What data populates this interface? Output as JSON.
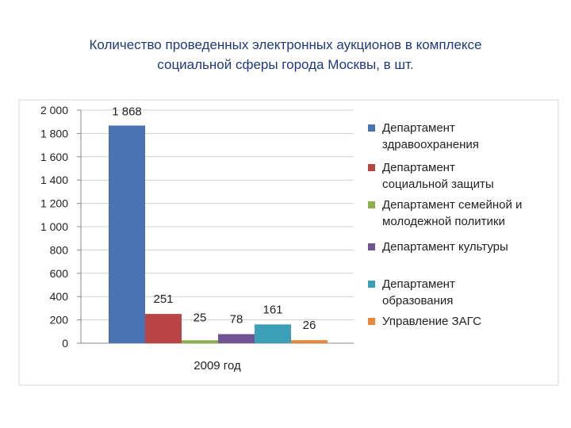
{
  "title_lines": [
    "Количество проведенных электронных аукционов в комплексе",
    "социальной сферы города Москвы, в шт."
  ],
  "chart_data": {
    "type": "bar",
    "xlabel": "2009 год",
    "ylim": [
      0,
      2000
    ],
    "yticks": [
      0,
      200,
      400,
      600,
      800,
      1000,
      1200,
      1400,
      1600,
      1800,
      2000
    ],
    "ytick_labels": [
      "0",
      "200",
      "400",
      "600",
      "800",
      "1 000",
      "1 200",
      "1 400",
      "1 600",
      "1 800",
      "2 000"
    ],
    "grid": true,
    "legend_position": "right",
    "series": [
      {
        "name": [
          "Департамент",
          "здравоохранения"
        ],
        "value": 1868,
        "label": "1 868",
        "color": "#4a73b3"
      },
      {
        "name": [
          "Департамент",
          "социальной защиты"
        ],
        "value": 251,
        "label": "251",
        "color": "#b84444"
      },
      {
        "name": [
          "Департамент семейной и",
          "молодежной политики"
        ],
        "value": 25,
        "label": "25",
        "color": "#8bb04a"
      },
      {
        "name": [
          "Департамент культуры"
        ],
        "value": 78,
        "label": "78",
        "color": "#6f5393"
      },
      {
        "name": [
          "Департамент",
          "образования"
        ],
        "value": 161,
        "label": "161",
        "color": "#3b9fb8"
      },
      {
        "name": [
          "Управление ЗАГС"
        ],
        "value": 26,
        "label": "26",
        "color": "#e9873a"
      }
    ]
  }
}
